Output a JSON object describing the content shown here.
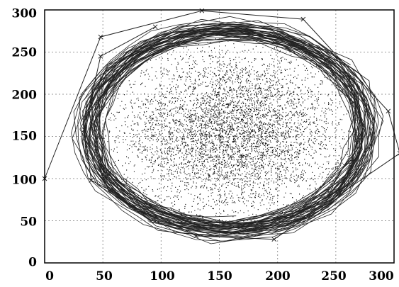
{
  "chart_data": {
    "type": "scatter",
    "title": "",
    "xlabel": "",
    "ylabel": "",
    "xlim": [
      0,
      300
    ],
    "ylim": [
      0,
      300
    ],
    "grid": true,
    "grid_style": "dotted",
    "xticks": [
      "0",
      "50",
      "100",
      "150",
      "200",
      "250",
      "300"
    ],
    "yticks": [
      "0",
      "50",
      "100",
      "150",
      "200",
      "250",
      "300"
    ],
    "colors": {
      "axis": "#000000",
      "grid": "#9a9a9a",
      "points": "#111111",
      "ring": "#222222"
    },
    "scatter_cloud": {
      "center": [
        160,
        155
      ],
      "circle_radius_data": 112,
      "approx_point_count": 5000,
      "distribution": "dense at center, thinning toward circle edge"
    },
    "ring_polygon_vertices": [
      [
        0,
        100
      ],
      [
        48,
        268
      ],
      [
        135,
        299
      ],
      [
        222,
        289
      ],
      [
        295,
        180
      ],
      [
        305,
        130
      ],
      [
        197,
        28
      ],
      [
        130,
        32
      ],
      [
        40,
        98
      ],
      [
        34,
        158
      ],
      [
        48,
        245
      ],
      [
        95,
        280
      ]
    ],
    "ring_band": {
      "center": [
        157,
        158
      ],
      "inner_radius": 108,
      "outer_radius": 128
    }
  }
}
